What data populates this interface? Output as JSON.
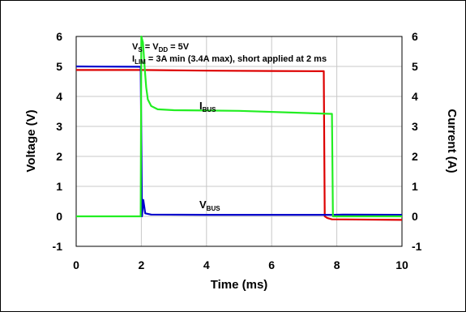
{
  "chart_data": {
    "type": "line",
    "xlabel": "Time (ms)",
    "ylabel_left": "Voltage (V)",
    "ylabel_right": "Current (A)",
    "xlim": [
      0,
      10
    ],
    "ylim": [
      -1,
      6
    ],
    "xticks": [
      "0",
      "2",
      "4",
      "6",
      "8",
      "10"
    ],
    "yticks_left": [
      "-1",
      "0",
      "1",
      "2",
      "3",
      "4",
      "5",
      "6"
    ],
    "yticks_right": [
      "-1",
      "0",
      "1",
      "2",
      "3",
      "4",
      "5",
      "6"
    ],
    "grid": true,
    "annotations": {
      "line1": {
        "v": "V",
        "s_sub": "S",
        "eq1": " = V",
        "dd_sub": "DD",
        "eq2": " = 5V"
      },
      "line2": {
        "i": "I",
        "lim_sub": "LIM",
        "rest": " = 3A min (3.4A max), short applied at 2 ms"
      },
      "ibus": {
        "main": "I",
        "sub": "BUS"
      },
      "vbus": {
        "main": "V",
        "sub": "BUS"
      }
    },
    "series": [
      {
        "name": "VS (blue)",
        "color": "#0000cc",
        "points": [
          [
            0,
            5.0
          ],
          [
            1.98,
            4.99
          ],
          [
            2.02,
            0.0
          ],
          [
            2.06,
            0.55
          ],
          [
            2.12,
            0.1
          ],
          [
            2.3,
            0.06
          ],
          [
            4,
            0.05
          ],
          [
            6,
            0.05
          ],
          [
            7.9,
            0.05
          ],
          [
            8.2,
            0.06
          ],
          [
            10,
            0.05
          ]
        ]
      },
      {
        "name": "VBUS (red)",
        "color": "#dd0000",
        "points": [
          [
            0,
            4.88
          ],
          [
            2.0,
            4.88
          ],
          [
            4,
            4.86
          ],
          [
            6,
            4.85
          ],
          [
            7.6,
            4.84
          ],
          [
            7.63,
            0.0
          ],
          [
            7.7,
            -0.05
          ],
          [
            7.85,
            -0.1
          ],
          [
            10,
            -0.12
          ]
        ]
      },
      {
        "name": "IBUS (green)",
        "color": "#22ee22",
        "points": [
          [
            0,
            0.0
          ],
          [
            1.98,
            0.0
          ],
          [
            2.0,
            6.0
          ],
          [
            2.05,
            5.8
          ],
          [
            2.1,
            5.0
          ],
          [
            2.15,
            4.3
          ],
          [
            2.2,
            3.9
          ],
          [
            2.3,
            3.68
          ],
          [
            2.5,
            3.57
          ],
          [
            3.0,
            3.54
          ],
          [
            5.0,
            3.52
          ],
          [
            7.8,
            3.42
          ],
          [
            7.85,
            3.42
          ],
          [
            7.88,
            0.0
          ],
          [
            8.0,
            0.0
          ],
          [
            10,
            0.0
          ]
        ]
      }
    ]
  }
}
